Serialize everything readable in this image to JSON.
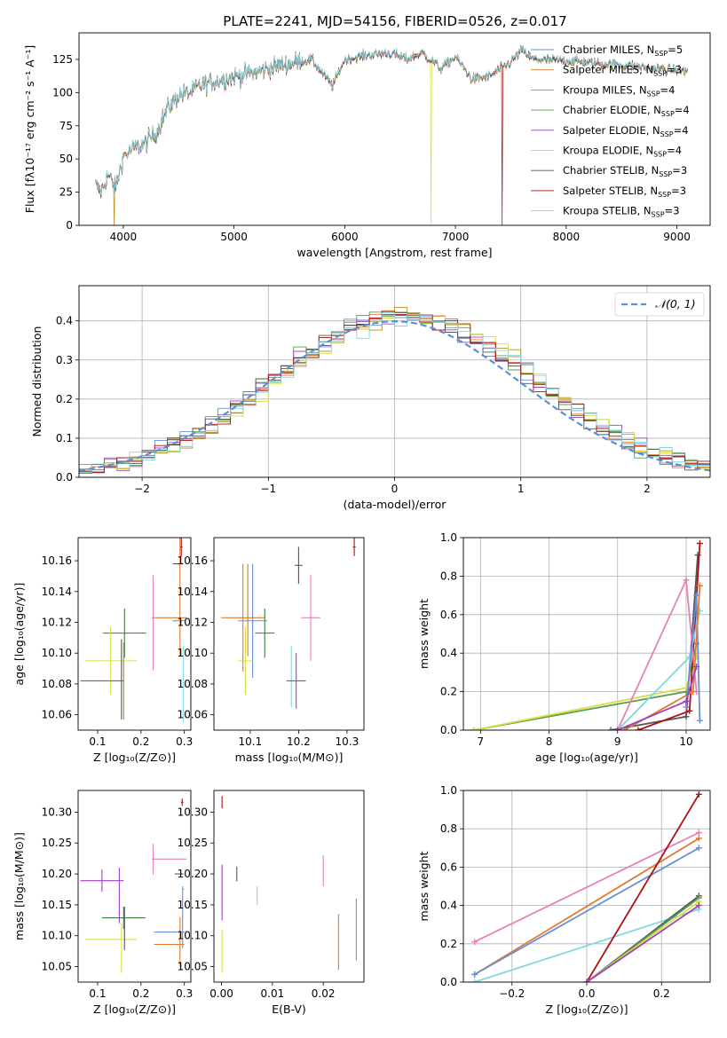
{
  "figure_title": "PLATE=2241, MJD=54156, FIBERID=0526, z=0.017",
  "chart_data": [
    {
      "id": "spectrum",
      "type": "line",
      "xlabel": "wavelength [Angstrom, rest frame]",
      "ylabel": "Flux [fλ10⁻¹⁷ erg cm⁻² s⁻¹ A⁻¹]",
      "xlim": [
        3600,
        9300
      ],
      "ylim": [
        0,
        145
      ],
      "xticks": [
        4000,
        5000,
        6000,
        7000,
        8000,
        9000
      ],
      "yticks": [
        0,
        25,
        50,
        75,
        100,
        125
      ],
      "legend_position": "right",
      "anchors_wavelength": [
        3750,
        3800,
        3860,
        3930,
        4000,
        4100,
        4200,
        4300,
        4400,
        4500,
        4600,
        4700,
        4800,
        4900,
        5000,
        5100,
        5200,
        5300,
        5500,
        5700,
        5890,
        6000,
        6200,
        6400,
        6563,
        6700,
        6870,
        7000,
        7150,
        7300,
        7500,
        7600,
        7700,
        8000,
        8300,
        8600,
        8800,
        9000,
        9100
      ],
      "anchors_flux": [
        30,
        25,
        38,
        28,
        52,
        58,
        62,
        70,
        88,
        98,
        100,
        105,
        108,
        110,
        112,
        114,
        115,
        118,
        122,
        125,
        105,
        125,
        128,
        130,
        125,
        130,
        118,
        127,
        110,
        112,
        123,
        132,
        125,
        124,
        122,
        120,
        118,
        117,
        116
      ],
      "series": [
        {
          "name": "Chabrier MILES, N",
          "suffix": "=5",
          "color": "#6a8fd8"
        },
        {
          "name": "Salpeter MILES, N",
          "suffix": "=3",
          "color": "#e07a30"
        },
        {
          "name": "Kroupa MILES, N",
          "suffix": "=4",
          "color": "#b98a1c"
        },
        {
          "name": "Chabrier ELODIE, N",
          "suffix": "=4",
          "color": "#5a9a5a"
        },
        {
          "name": "Salpeter ELODIE, N",
          "suffix": "=4",
          "color": "#a040c0"
        },
        {
          "name": "Kroupa ELODIE, N",
          "suffix": "=4",
          "color": "#d8e040"
        },
        {
          "name": "Chabrier STELIB, N",
          "suffix": "=3",
          "color": "#555555"
        },
        {
          "name": "Salpeter STELIB, N",
          "suffix": "=3",
          "color": "#b01010"
        },
        {
          "name": "Kroupa STELIB, N",
          "suffix": "=3",
          "color": "#80d8e0"
        }
      ],
      "legend_subscript": "SSP",
      "dropouts": [
        {
          "x": 3920,
          "color": "#b98a1c"
        },
        {
          "x": 6780,
          "color": "#d8e040"
        },
        {
          "x": 7420,
          "color": "#b01010"
        }
      ]
    },
    {
      "id": "residual-hist",
      "type": "step-histogram",
      "xlabel": "(data-model)/error",
      "ylabel": "Normed distribution",
      "xlim": [
        -2.5,
        2.5
      ],
      "ylim": [
        0,
        0.49
      ],
      "xticks": [
        -2,
        -1,
        0,
        1,
        2
      ],
      "yticks": [
        0.0,
        0.1,
        0.2,
        0.3,
        0.4
      ],
      "grid": true,
      "legend": "𝒩(0, 1)",
      "legend_position": "top-right",
      "bin_width": 0.1
    },
    {
      "id": "age-vs-Z",
      "type": "errorbar",
      "xlabel": "Z [log₁₀(Z/Z⊙)]",
      "ylabel": "age  [log₁₀(age/yr)]",
      "xlim": [
        0.055,
        0.315
      ],
      "ylim": [
        10.05,
        10.175
      ],
      "xticks": [
        0.1,
        0.2,
        0.3
      ],
      "yticks": [
        10.06,
        10.08,
        10.1,
        10.12,
        10.14,
        10.16
      ],
      "points": [
        {
          "x": 0.293,
          "y": 10.169,
          "xe": 0.003,
          "ye": 0.006,
          "color": "#b01010"
        },
        {
          "x": 0.285,
          "y": 10.158,
          "xe": 0.012,
          "ye": 0.0,
          "color": "#555555"
        },
        {
          "x": 0.288,
          "y": 10.121,
          "xe": 0.015,
          "ye": 0.0,
          "color": "#6a8fd8"
        },
        {
          "x": 0.265,
          "y": 10.123,
          "xe": 0.04,
          "ye": 0.0,
          "color": "#e07a30"
        },
        {
          "x": 0.228,
          "y": 10.12,
          "xe": 0.0,
          "ye": 0.031,
          "color": "#e880b8"
        },
        {
          "x": 0.29,
          "y": 10.158,
          "xe": 0.0,
          "ye": 0.06,
          "color": "#e07a30"
        },
        {
          "x": 0.298,
          "y": 10.08,
          "xe": 0.0,
          "ye": 0.025,
          "color": "#80d8e0"
        },
        {
          "x": 0.162,
          "y": 10.113,
          "xe": 0.05,
          "ye": 0.016,
          "color": "#3a7a3a"
        },
        {
          "x": 0.13,
          "y": 10.095,
          "xe": 0.06,
          "ye": 0.022,
          "color": "#d8e040"
        },
        {
          "x": 0.11,
          "y": 10.082,
          "xe": 0.05,
          "ye": 0.0,
          "color": "#a040c0"
        },
        {
          "x": 0.155,
          "y": 10.083,
          "xe": 0.0,
          "ye": 0.026,
          "color": "#555555"
        },
        {
          "x": 0.16,
          "y": 10.082,
          "xe": 0.0,
          "ye": 0.025,
          "color": "#b98a1c"
        }
      ]
    },
    {
      "id": "age-vs-mass",
      "type": "errorbar",
      "xlabel": "mass [log₁₀(M/M⊙)]",
      "ylabel": "",
      "xlim": [
        10.025,
        10.335
      ],
      "ylim": [
        10.05,
        10.175
      ],
      "xticks": [
        10.1,
        10.2,
        10.3
      ],
      "yticks": [
        10.06,
        10.08,
        10.1,
        10.12,
        10.14,
        10.16
      ],
      "points": [
        {
          "x": 10.315,
          "y": 10.169,
          "xe": 0.003,
          "ye": 0.006,
          "color": "#b01010"
        },
        {
          "x": 10.2,
          "y": 10.157,
          "xe": 0.008,
          "ye": 0.012,
          "color": "#555555"
        },
        {
          "x": 10.105,
          "y": 10.121,
          "xe": 0.03,
          "ye": 0.037,
          "color": "#6a8fd8"
        },
        {
          "x": 10.085,
          "y": 10.123,
          "xe": 0.045,
          "ye": 0.035,
          "color": "#e07a30"
        },
        {
          "x": 10.225,
          "y": 10.123,
          "xe": 0.02,
          "ye": 0.028,
          "color": "#e880b8"
        },
        {
          "x": 10.185,
          "y": 10.085,
          "xe": 0.0,
          "ye": 0.02,
          "color": "#80d8e0"
        },
        {
          "x": 10.13,
          "y": 10.113,
          "xe": 0.02,
          "ye": 0.016,
          "color": "#3a7a3a"
        },
        {
          "x": 10.09,
          "y": 10.095,
          "xe": 0.015,
          "ye": 0.022,
          "color": "#d8e040"
        },
        {
          "x": 10.195,
          "y": 10.082,
          "xe": 0.02,
          "ye": 0.018,
          "color": "#a040c0"
        },
        {
          "x": 10.095,
          "y": 10.128,
          "xe": 0.0,
          "ye": 0.03,
          "color": "#b98a1c"
        }
      ]
    },
    {
      "id": "weight-vs-age",
      "type": "line",
      "xlabel": "age  [log₁₀(age/yr)]",
      "ylabel": "mass weight",
      "xlim": [
        6.75,
        10.35
      ],
      "ylim": [
        0,
        1.0
      ],
      "xticks": [
        7,
        8,
        9,
        10
      ],
      "yticks": [
        0.0,
        0.2,
        0.4,
        0.6,
        0.8,
        1.0
      ],
      "grid": true,
      "series": [
        {
          "x": [
            6.9,
            10.0,
            10.15
          ],
          "y": [
            0.0,
            0.2,
            0.45
          ],
          "color": "#5a9a5a"
        },
        {
          "x": [
            6.9,
            10.0,
            10.15
          ],
          "y": [
            0.0,
            0.22,
            0.38
          ],
          "color": "#d8e040"
        },
        {
          "x": [
            8.9,
            10.0,
            10.17
          ],
          "y": [
            0.0,
            0.07,
            0.91
          ],
          "color": "#555555"
        },
        {
          "x": [
            9.3,
            10.05,
            10.2
          ],
          "y": [
            0.0,
            0.1,
            0.97
          ],
          "color": "#b01010"
        },
        {
          "x": [
            9.0,
            10.05,
            10.2
          ],
          "y": [
            0.0,
            0.38,
            0.62
          ],
          "color": "#80d8e0"
        },
        {
          "x": [
            9.0,
            10.0,
            10.15
          ],
          "y": [
            0.0,
            0.78,
            0.2
          ],
          "color": "#e880b8"
        },
        {
          "x": [
            10.0,
            10.15,
            10.2
          ],
          "y": [
            0.12,
            0.7,
            0.05
          ],
          "color": "#6a8fd8"
        },
        {
          "x": [
            9.1,
            10.1,
            10.2
          ],
          "y": [
            0.0,
            0.2,
            0.75
          ],
          "color": "#e07a30"
        },
        {
          "x": [
            9.0,
            10.0,
            10.15
          ],
          "y": [
            0.0,
            0.15,
            0.33
          ],
          "color": "#a040c0"
        }
      ]
    },
    {
      "id": "mass-vs-Z",
      "type": "errorbar",
      "xlabel": "Z [log₁₀(Z/Z⊙)]",
      "ylabel": "mass [log₁₀(M/M⊙)]",
      "xlim": [
        0.055,
        0.315
      ],
      "ylim": [
        10.025,
        10.335
      ],
      "xticks": [
        0.1,
        0.2,
        0.3
      ],
      "yticks": [
        10.05,
        10.1,
        10.15,
        10.2,
        10.25,
        10.3
      ],
      "points": [
        {
          "x": 0.295,
          "y": 10.316,
          "xe": 0.003,
          "ye": 0.006,
          "color": "#b01010"
        },
        {
          "x": 0.288,
          "y": 10.2,
          "xe": 0.01,
          "ye": 0.0,
          "color": "#555555"
        },
        {
          "x": 0.265,
          "y": 10.106,
          "xe": 0.035,
          "ye": 0.0,
          "color": "#6a8fd8"
        },
        {
          "x": 0.265,
          "y": 10.086,
          "xe": 0.035,
          "ye": 0.0,
          "color": "#e07a30"
        },
        {
          "x": 0.265,
          "y": 10.224,
          "xe": 0.04,
          "ye": 0.0,
          "color": "#e880b8"
        },
        {
          "x": 0.228,
          "y": 10.224,
          "xe": 0.0,
          "ye": 0.025,
          "color": "#e880b8"
        },
        {
          "x": 0.298,
          "y": 10.175,
          "xe": 0.003,
          "ye": 0.0,
          "color": "#80d8e0"
        },
        {
          "x": 0.296,
          "y": 10.13,
          "xe": 0.0,
          "ye": 0.05,
          "color": "#6a8fd8"
        },
        {
          "x": 0.29,
          "y": 10.09,
          "xe": 0.0,
          "ye": 0.04,
          "color": "#e07a30"
        },
        {
          "x": 0.16,
          "y": 10.129,
          "xe": 0.05,
          "ye": 0.018,
          "color": "#3a7a3a"
        },
        {
          "x": 0.11,
          "y": 10.189,
          "xe": 0.05,
          "ye": 0.018,
          "color": "#a040c0"
        },
        {
          "x": 0.15,
          "y": 10.165,
          "xe": 0.0,
          "ye": 0.045,
          "color": "#a040c0"
        },
        {
          "x": 0.13,
          "y": 10.094,
          "xe": 0.06,
          "ye": 0.0,
          "color": "#d8e040"
        },
        {
          "x": 0.155,
          "y": 10.08,
          "xe": 0.0,
          "ye": 0.04,
          "color": "#d8e040"
        },
        {
          "x": 0.162,
          "y": 10.112,
          "xe": 0.0,
          "ye": 0.035,
          "color": "#555555"
        }
      ]
    },
    {
      "id": "mass-vs-ebv",
      "type": "errorbar",
      "xlabel": "E(B-V)",
      "ylabel": "",
      "xlim": [
        -0.0015,
        0.028
      ],
      "ylim": [
        10.025,
        10.335
      ],
      "xticks": [
        0.0,
        0.01,
        0.02
      ],
      "yticks": [
        10.05,
        10.1,
        10.15,
        10.2,
        10.25,
        10.3
      ],
      "points": [
        {
          "x": 0.0001,
          "y": 10.316,
          "xe": 0.0,
          "ye": 0.01,
          "color": "#b01010"
        },
        {
          "x": 0.0001,
          "y": 10.17,
          "xe": 0.0,
          "ye": 0.045,
          "color": "#a040c0"
        },
        {
          "x": 0.0001,
          "y": 10.075,
          "xe": 0.0,
          "ye": 0.035,
          "color": "#d8e040"
        },
        {
          "x": 0.003,
          "y": 10.2,
          "xe": 0.0,
          "ye": 0.012,
          "color": "#555555"
        },
        {
          "x": 0.007,
          "y": 10.165,
          "xe": 0.0,
          "ye": 0.015,
          "color": "#80d8e0"
        },
        {
          "x": 0.02,
          "y": 10.205,
          "xe": 0.0,
          "ye": 0.025,
          "color": "#e880b8"
        },
        {
          "x": 0.023,
          "y": 10.09,
          "xe": 0.0,
          "ye": 0.045,
          "color": "#e07a30"
        },
        {
          "x": 0.0265,
          "y": 10.11,
          "xe": 0.0,
          "ye": 0.05,
          "color": "#6a8fd8"
        }
      ]
    },
    {
      "id": "weight-vs-Z",
      "type": "line",
      "xlabel": "Z [log₁₀(Z/Z⊙)]",
      "ylabel": "mass weight",
      "xlim": [
        -0.33,
        0.33
      ],
      "ylim": [
        0,
        1.0
      ],
      "xticks": [
        -0.2,
        0.0,
        0.2
      ],
      "yticks": [
        0.0,
        0.2,
        0.4,
        0.6,
        0.8,
        1.0
      ],
      "grid": true,
      "series": [
        {
          "x": [
            -0.3,
            0.3
          ],
          "y": [
            0.21,
            0.78
          ],
          "color": "#e880b8"
        },
        {
          "x": [
            -0.3,
            0.3
          ],
          "y": [
            0.04,
            0.75
          ],
          "color": "#e07a30"
        },
        {
          "x": [
            -0.3,
            0.3
          ],
          "y": [
            0.04,
            0.7
          ],
          "color": "#6a8fd8"
        },
        {
          "x": [
            -0.3,
            0.3
          ],
          "y": [
            0.0,
            0.38
          ],
          "color": "#80d8e0"
        },
        {
          "x": [
            0.0,
            0.3
          ],
          "y": [
            0.0,
            0.98
          ],
          "color": "#b01010"
        },
        {
          "x": [
            0.0,
            0.3
          ],
          "y": [
            0.0,
            0.45
          ],
          "color": "#555555"
        },
        {
          "x": [
            0.0,
            0.3
          ],
          "y": [
            0.0,
            0.44
          ],
          "color": "#5a9a5a"
        },
        {
          "x": [
            0.0,
            0.3
          ],
          "y": [
            0.0,
            0.42
          ],
          "color": "#d8e040"
        },
        {
          "x": [
            0.0,
            0.3
          ],
          "y": [
            0.0,
            0.4
          ],
          "color": "#a040c0"
        }
      ]
    }
  ]
}
